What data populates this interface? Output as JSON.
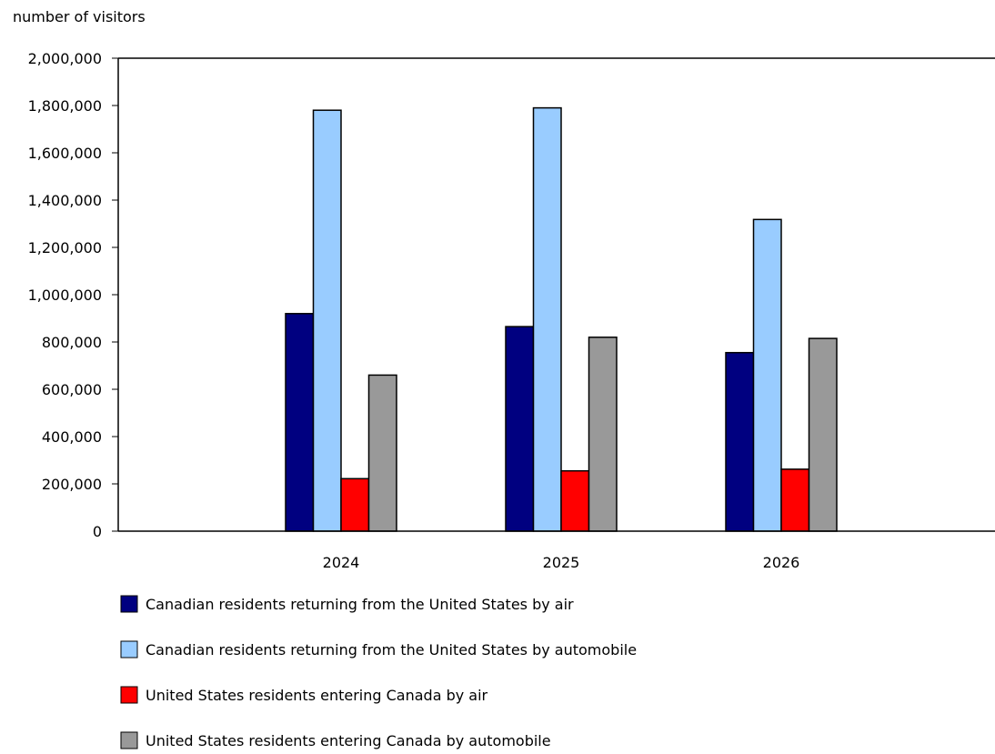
{
  "chart_data": {
    "type": "bar",
    "ylabel": "number of visitors",
    "xlabel": "",
    "ylim": [
      0,
      2000000
    ],
    "y_ticks": [
      0,
      200000,
      400000,
      600000,
      800000,
      1000000,
      1200000,
      1400000,
      1600000,
      1800000,
      2000000
    ],
    "y_tick_labels": [
      "0",
      "200,000",
      "400,000",
      "600,000",
      "800,000",
      "1,000,000",
      "1,200,000",
      "1,400,000",
      "1,600,000",
      "1,800,000",
      "2,000,000"
    ],
    "categories": [
      "2024",
      "2025",
      "2026"
    ],
    "grid": false,
    "legend_position": "bottom",
    "series": [
      {
        "name": "Canadian residents returning from the United States by air",
        "color": "#000080",
        "values": [
          920000,
          865000,
          755000
        ]
      },
      {
        "name": "Canadian residents returning from the United States by automobile",
        "color": "#99ccff",
        "values": [
          1780000,
          1790000,
          1318000
        ]
      },
      {
        "name": "United States residents entering Canada by air",
        "color": "#ff0000",
        "values": [
          222000,
          255000,
          262000
        ]
      },
      {
        "name": "United States residents entering Canada by automobile",
        "color": "#999999",
        "values": [
          660000,
          820000,
          815000
        ]
      }
    ]
  }
}
